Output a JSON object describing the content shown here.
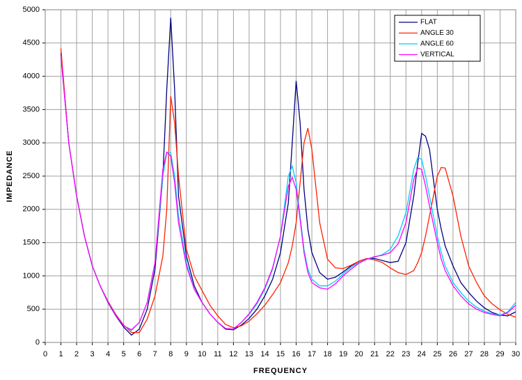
{
  "chart_data": {
    "type": "line",
    "x_label": "FREQUENCY",
    "y_label": "IMPEDANCE",
    "x": [
      1,
      1.5,
      2,
      2.5,
      3,
      3.5,
      4,
      4.5,
      5,
      5.5,
      6,
      6.5,
      7,
      7.5,
      7.75,
      8,
      8.25,
      8.5,
      9,
      9.5,
      10,
      10.5,
      11,
      11.5,
      12,
      12.5,
      13,
      13.5,
      14,
      14.5,
      15,
      15.5,
      15.75,
      16,
      16.25,
      16.5,
      16.75,
      17,
      17.5,
      18,
      18.5,
      19,
      19.5,
      20,
      20.5,
      21,
      21.5,
      22,
      22.5,
      23,
      23.5,
      23.75,
      24,
      24.25,
      24.5,
      25,
      25.25,
      25.5,
      26,
      26.5,
      27,
      27.5,
      28,
      28.5,
      29,
      29.5,
      30
    ],
    "series": [
      {
        "name": "FLAT",
        "color": "#000080",
        "values": [
          4350,
          3000,
          2200,
          1600,
          1150,
          850,
          600,
          400,
          230,
          110,
          200,
          500,
          1100,
          2500,
          3800,
          4880,
          3800,
          2200,
          1300,
          850,
          600,
          430,
          300,
          200,
          190,
          260,
          360,
          500,
          700,
          950,
          1350,
          2100,
          3000,
          3930,
          3300,
          2300,
          1700,
          1350,
          1050,
          950,
          980,
          1060,
          1150,
          1220,
          1260,
          1260,
          1230,
          1200,
          1220,
          1500,
          2200,
          2700,
          3140,
          3100,
          2900,
          2000,
          1700,
          1450,
          1150,
          900,
          750,
          620,
          520,
          450,
          410,
          400,
          460
        ]
      },
      {
        "name": "ANGLE 30",
        "color": "#ff2000",
        "values": [
          4420,
          3000,
          2200,
          1600,
          1150,
          850,
          620,
          420,
          260,
          150,
          150,
          350,
          700,
          1300,
          2000,
          3700,
          3300,
          2500,
          1400,
          1000,
          780,
          560,
          400,
          270,
          220,
          250,
          320,
          430,
          560,
          720,
          900,
          1200,
          1450,
          1800,
          2400,
          3000,
          3220,
          2900,
          1800,
          1250,
          1120,
          1110,
          1160,
          1220,
          1260,
          1240,
          1200,
          1120,
          1050,
          1020,
          1080,
          1200,
          1350,
          1600,
          1900,
          2500,
          2630,
          2620,
          2200,
          1600,
          1150,
          900,
          700,
          580,
          490,
          420,
          380
        ]
      },
      {
        "name": "ANGLE 60",
        "color": "#00ccff",
        "values": [
          4300,
          3000,
          2200,
          1600,
          1150,
          850,
          610,
          410,
          250,
          180,
          300,
          600,
          1200,
          2500,
          2850,
          2850,
          2500,
          1900,
          1200,
          800,
          600,
          430,
          300,
          210,
          200,
          300,
          420,
          580,
          800,
          1100,
          1600,
          2500,
          2650,
          2400,
          1900,
          1400,
          1100,
          950,
          850,
          850,
          920,
          1030,
          1130,
          1200,
          1250,
          1280,
          1320,
          1400,
          1600,
          1950,
          2600,
          2780,
          2750,
          2500,
          2200,
          1600,
          1350,
          1150,
          900,
          750,
          620,
          530,
          470,
          430,
          410,
          460,
          600
        ]
      },
      {
        "name": "VERTICAL",
        "color": "#ff00ff",
        "values": [
          4300,
          3000,
          2200,
          1600,
          1150,
          850,
          610,
          410,
          250,
          190,
          300,
          600,
          1200,
          2600,
          2860,
          2800,
          2400,
          1800,
          1150,
          800,
          600,
          430,
          300,
          210,
          200,
          300,
          430,
          600,
          820,
          1120,
          1600,
          2350,
          2480,
          2300,
          1850,
          1350,
          1050,
          900,
          820,
          800,
          880,
          1000,
          1100,
          1190,
          1250,
          1290,
          1310,
          1350,
          1480,
          1800,
          2450,
          2620,
          2600,
          2350,
          2050,
          1500,
          1250,
          1080,
          850,
          700,
          580,
          500,
          450,
          420,
          400,
          450,
          560
        ]
      }
    ],
    "xlim": [
      0,
      30
    ],
    "xticks": [
      0,
      1,
      2,
      3,
      4,
      5,
      6,
      7,
      8,
      9,
      10,
      11,
      12,
      13,
      14,
      15,
      16,
      17,
      18,
      19,
      20,
      21,
      22,
      23,
      24,
      25,
      26,
      27,
      28,
      29,
      30
    ],
    "ylim": [
      0,
      5000
    ],
    "yticks": [
      0,
      500,
      1000,
      1500,
      2000,
      2500,
      3000,
      3500,
      4000,
      4500,
      5000
    ],
    "grid": true,
    "legend": "upper right"
  }
}
